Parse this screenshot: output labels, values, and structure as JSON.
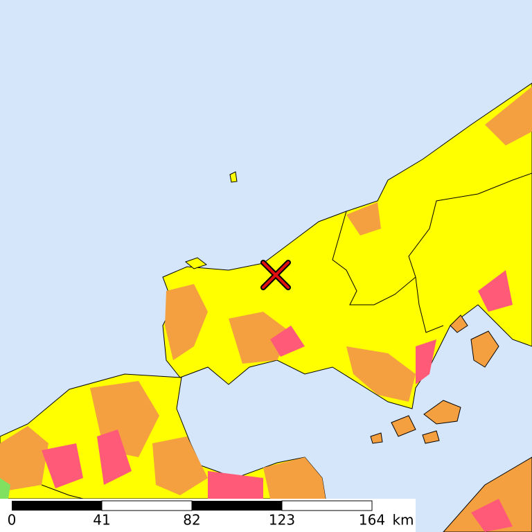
{
  "scale_bar": {
    "labels": [
      "0",
      "41",
      "82",
      "123",
      "164"
    ],
    "unit": "km"
  }
}
